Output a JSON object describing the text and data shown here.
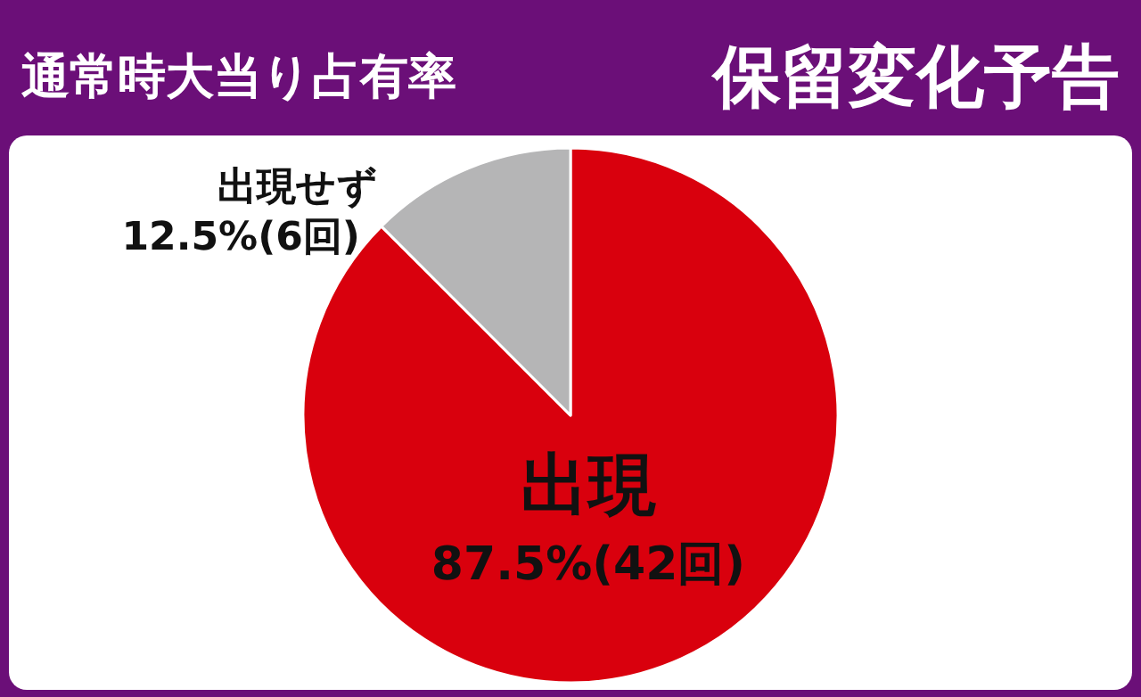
{
  "chart_data": {
    "type": "pie",
    "title": "通常時大当り占有率",
    "subtitle": "保留変化予告",
    "categories": [
      "出現",
      "出現せず"
    ],
    "values": [
      87.5,
      12.5
    ],
    "value_labels": [
      "87.5%(42回)",
      "12.5%(6回)"
    ],
    "colors": [
      "#d9000d",
      "#b5b5b6"
    ]
  }
}
